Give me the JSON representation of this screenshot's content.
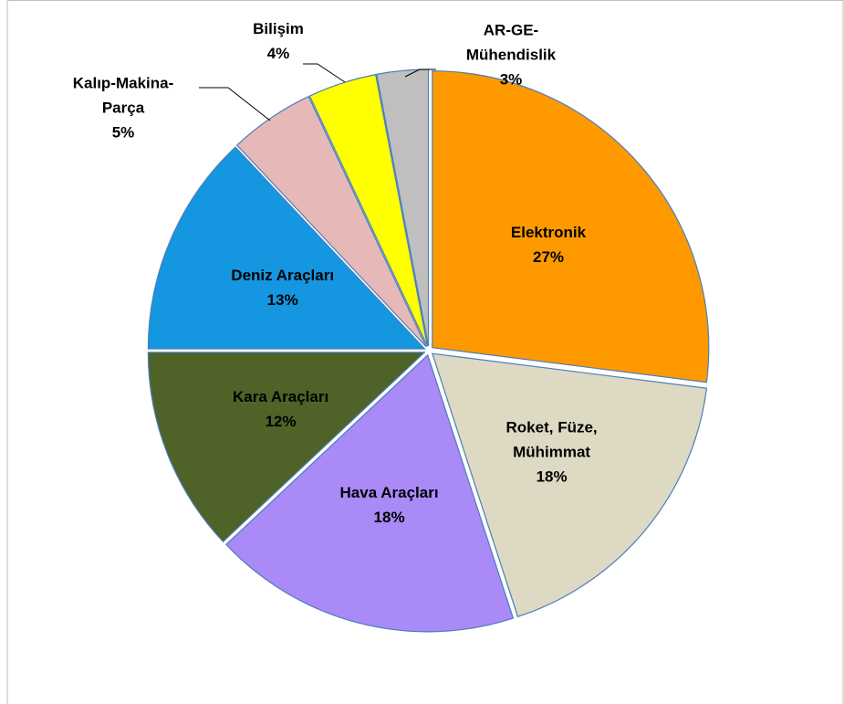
{
  "chart_data": {
    "type": "pie",
    "categories": [
      "Elektronik",
      "Roket, Füze, Mühimmat",
      "Hava Araçları",
      "Kara Araçları",
      "Deniz Araçları",
      "Kalıp-Makina-Parça",
      "Bilişim",
      "AR-GE-Mühendislik"
    ],
    "values": [
      27,
      18,
      18,
      12,
      13,
      5,
      4,
      3
    ],
    "value_labels": [
      "27%",
      "18%",
      "18%",
      "12%",
      "13%",
      "5%",
      "4%",
      "3%"
    ],
    "colors": [
      "#ff9900",
      "#ddd9c3",
      "#a98af7",
      "#4f6228",
      "#1596e0",
      "#e6b9b8",
      "#ffff00",
      "#bfbfbf"
    ]
  }
}
